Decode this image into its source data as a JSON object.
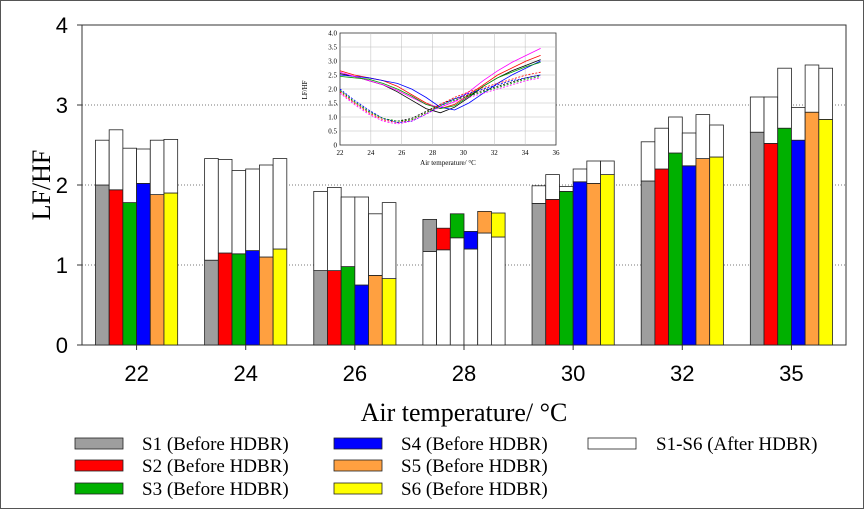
{
  "chart_data": {
    "type": "bar",
    "xlabel": "Air temperature/ °C",
    "ylabel": "LF/HF",
    "ylim": [
      0,
      4
    ],
    "yticks": [
      "0",
      "1",
      "2",
      "3",
      "4"
    ],
    "categories": [
      "22",
      "24",
      "26",
      "28",
      "30",
      "32",
      "35"
    ],
    "grid": "horizontal dotted",
    "legend_position": "bottom",
    "series": [
      {
        "name": "S1 (Before HDBR)",
        "color": "#9e9e9e",
        "values": [
          2.0,
          1.06,
          0.93,
          1.57,
          1.77,
          2.05,
          2.66
        ]
      },
      {
        "name": "S2 (Before HDBR)",
        "color": "#ff0000",
        "values": [
          1.94,
          1.15,
          0.93,
          1.46,
          1.82,
          2.2,
          2.52
        ]
      },
      {
        "name": "S3 (Before HDBR)",
        "color": "#00b000",
        "values": [
          1.78,
          1.14,
          0.98,
          1.64,
          1.92,
          2.4,
          2.71
        ]
      },
      {
        "name": "S4 (Before HDBR)",
        "color": "#0000ff",
        "values": [
          2.02,
          1.18,
          0.75,
          1.42,
          2.04,
          2.24,
          2.56
        ]
      },
      {
        "name": "S5 (Before HDBR)",
        "color": "#ffa040",
        "values": [
          1.88,
          1.1,
          0.87,
          1.67,
          2.02,
          2.33,
          2.91
        ]
      },
      {
        "name": "S6 (Before HDBR)",
        "color": "#ffff00",
        "values": [
          1.9,
          1.2,
          0.83,
          1.65,
          2.13,
          2.35,
          2.82
        ]
      }
    ],
    "after_series": {
      "name": "S1-S6 (After HDBR)",
      "color": "#ffffff",
      "values": [
        [
          2.56,
          2.69,
          2.46,
          2.45,
          2.56,
          2.57
        ],
        [
          2.33,
          2.32,
          2.18,
          2.2,
          2.25,
          2.33
        ],
        [
          1.92,
          1.97,
          1.85,
          1.85,
          1.64,
          1.78
        ],
        [
          1.17,
          1.19,
          1.34,
          1.2,
          1.4,
          1.35
        ],
        [
          1.99,
          2.13,
          1.98,
          2.2,
          2.3,
          2.3
        ],
        [
          2.54,
          2.71,
          2.85,
          2.65,
          2.88,
          2.75
        ],
        [
          3.1,
          3.1,
          3.46,
          2.97,
          3.5,
          3.46
        ]
      ]
    },
    "inset": {
      "type": "line",
      "xlabel": "Air temperature/ °C",
      "ylabel": "LF/HF",
      "xticks": [
        "22",
        "24",
        "26",
        "28",
        "30",
        "32",
        "34",
        "36"
      ],
      "yticks": [
        "0",
        "0.5",
        "1.0",
        "1.5",
        "2.0",
        "2.5",
        "3.0",
        "3.5",
        "4.0"
      ],
      "xlim": [
        22,
        36
      ],
      "ylim": [
        0,
        4
      ],
      "series": [
        {
          "color": "#000000",
          "dashed": false,
          "y": [
            2.55,
            2.45,
            2.3,
            2.15,
            1.9,
            1.6,
            1.3,
            1.15,
            1.35,
            1.7,
            2.1,
            2.4,
            2.65,
            2.85,
            3.05
          ]
        },
        {
          "color": "#ff0000",
          "dashed": false,
          "y": [
            2.65,
            2.5,
            2.4,
            2.3,
            2.1,
            1.8,
            1.5,
            1.3,
            1.45,
            1.8,
            2.15,
            2.5,
            2.75,
            3.0,
            3.2
          ]
        },
        {
          "color": "#0000ff",
          "dashed": false,
          "y": [
            2.5,
            2.45,
            2.4,
            2.3,
            2.2,
            2.0,
            1.7,
            1.35,
            1.25,
            1.5,
            1.85,
            2.2,
            2.5,
            2.75,
            3.0
          ]
        },
        {
          "color": "#ff00ff",
          "dashed": false,
          "y": [
            2.6,
            2.45,
            2.3,
            2.15,
            1.95,
            1.7,
            1.45,
            1.35,
            1.55,
            1.9,
            2.3,
            2.65,
            2.95,
            3.2,
            3.45
          ]
        },
        {
          "color": "#00a000",
          "dashed": false,
          "y": [
            2.45,
            2.4,
            2.35,
            2.2,
            2.0,
            1.75,
            1.45,
            1.3,
            1.4,
            1.75,
            2.1,
            2.4,
            2.6,
            2.8,
            2.95
          ]
        },
        {
          "color": "#000000",
          "dashed": true,
          "y": [
            1.95,
            1.55,
            1.2,
            0.95,
            0.85,
            0.95,
            1.2,
            1.45,
            1.65,
            1.8,
            1.95,
            2.1,
            2.25,
            2.4,
            2.5
          ]
        },
        {
          "color": "#ff0000",
          "dashed": true,
          "y": [
            1.9,
            1.5,
            1.15,
            0.9,
            0.8,
            0.9,
            1.15,
            1.45,
            1.7,
            1.9,
            2.05,
            2.2,
            2.35,
            2.5,
            2.6
          ]
        },
        {
          "color": "#0000ff",
          "dashed": true,
          "y": [
            2.0,
            1.6,
            1.25,
            0.95,
            0.8,
            0.85,
            1.1,
            1.4,
            1.65,
            1.85,
            2.0,
            2.15,
            2.3,
            2.4,
            2.5
          ]
        },
        {
          "color": "#ff00ff",
          "dashed": true,
          "y": [
            1.85,
            1.45,
            1.1,
            0.85,
            0.75,
            0.85,
            1.1,
            1.35,
            1.55,
            1.7,
            1.85,
            2.0,
            2.15,
            2.3,
            2.4
          ]
        },
        {
          "color": "#00a000",
          "dashed": true,
          "y": [
            1.95,
            1.55,
            1.2,
            0.95,
            0.85,
            0.9,
            1.15,
            1.4,
            1.6,
            1.75,
            1.9,
            2.05,
            2.2,
            2.35,
            2.45
          ]
        }
      ]
    }
  }
}
